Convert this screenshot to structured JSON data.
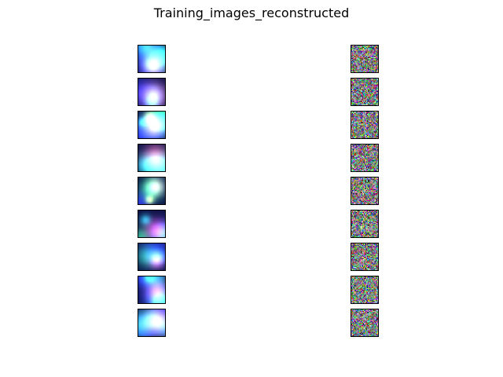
{
  "figure": {
    "title": "Training_images_reconstructed"
  },
  "grid": {
    "rows": 9,
    "columns": [
      {
        "kind": "original",
        "content": "blurred fluorescence microscopy cell crop: magenta-red nucleus on dark blue background with green/cyan regions"
      },
      {
        "kind": "reconstruction",
        "content": "random multicolour pixel noise"
      }
    ]
  },
  "colors": {
    "background": "#ffffff",
    "frame": "#000000",
    "nucleus": "#c8285a",
    "cytoplasm_green": "#1e9646",
    "background_blue": "#0a1450"
  }
}
